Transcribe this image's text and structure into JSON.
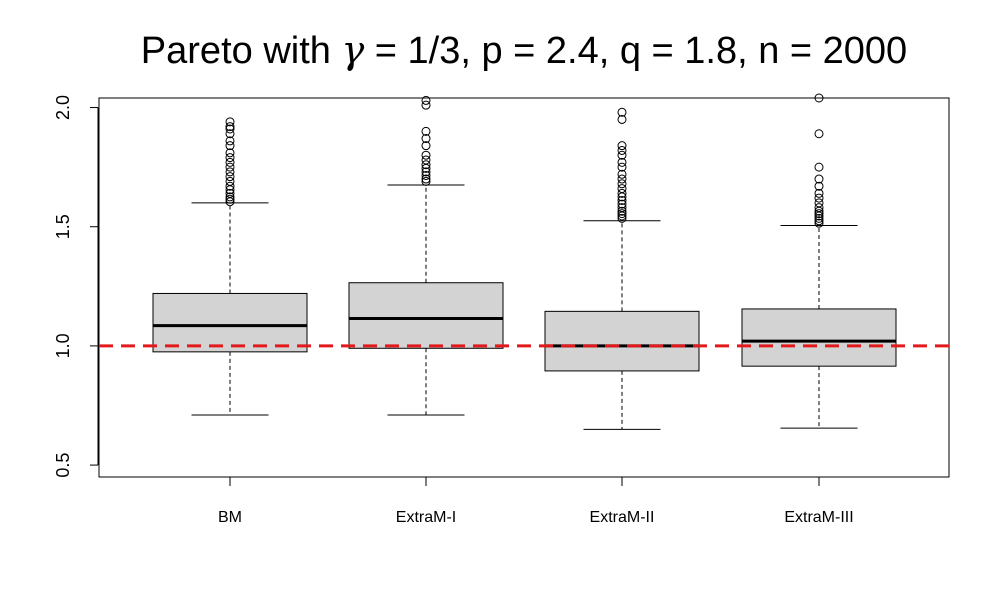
{
  "chart_data": {
    "type": "boxplot",
    "title": "Pareto with γ = 1/3, p = 2.4, q = 1.8, n = 2000",
    "title_parts": {
      "prefix": "Pareto with ",
      "gamma": "γ",
      "eq": " = ",
      "num": "1",
      "slash": "/",
      "den": "3",
      "suffix": ", p = 2.4, q = 1.8, n = 2000"
    },
    "xlabel": "",
    "ylabel": "",
    "ylim": [
      0.45,
      2.04
    ],
    "yticks": [
      0.5,
      1.0,
      1.5,
      2.0
    ],
    "ytick_labels": [
      "0.5",
      "1.0",
      "1.5",
      "2.0"
    ],
    "categories": [
      "BM",
      "ExtraM-I",
      "ExtraM-II",
      "ExtraM-III"
    ],
    "boxes": [
      {
        "category": "BM",
        "whisker_low": 0.71,
        "q1": 0.975,
        "median": 1.085,
        "q3": 1.22,
        "whisker_high": 1.6,
        "outliers": [
          1.605,
          1.615,
          1.625,
          1.64,
          1.655,
          1.67,
          1.69,
          1.71,
          1.73,
          1.75,
          1.77,
          1.79,
          1.81,
          1.84,
          1.86,
          1.89,
          1.91,
          1.92,
          1.94
        ]
      },
      {
        "category": "ExtraM-I",
        "whisker_low": 0.71,
        "q1": 0.99,
        "median": 1.115,
        "q3": 1.265,
        "whisker_high": 1.675,
        "outliers": [
          1.69,
          1.7,
          1.715,
          1.73,
          1.745,
          1.76,
          1.78,
          1.8,
          1.84,
          1.87,
          1.9,
          2.01,
          2.03
        ]
      },
      {
        "category": "ExtraM-II",
        "whisker_low": 0.65,
        "q1": 0.895,
        "median": 1.0,
        "q3": 1.145,
        "whisker_high": 1.525,
        "outliers": [
          1.535,
          1.545,
          1.555,
          1.565,
          1.58,
          1.595,
          1.61,
          1.625,
          1.64,
          1.66,
          1.68,
          1.7,
          1.72,
          1.75,
          1.77,
          1.8,
          1.82,
          1.84,
          1.95,
          1.98
        ]
      },
      {
        "category": "ExtraM-III",
        "whisker_low": 0.655,
        "q1": 0.915,
        "median": 1.02,
        "q3": 1.155,
        "whisker_high": 1.505,
        "outliers": [
          1.515,
          1.525,
          1.535,
          1.545,
          1.555,
          1.565,
          1.58,
          1.6,
          1.62,
          1.64,
          1.67,
          1.7,
          1.75,
          1.89,
          2.04
        ]
      }
    ],
    "reference_line": {
      "y": 1.0,
      "color": "#e31a1c",
      "style": "dashed"
    },
    "box_fill": "#d3d3d3",
    "grid": false,
    "legend": "none"
  }
}
